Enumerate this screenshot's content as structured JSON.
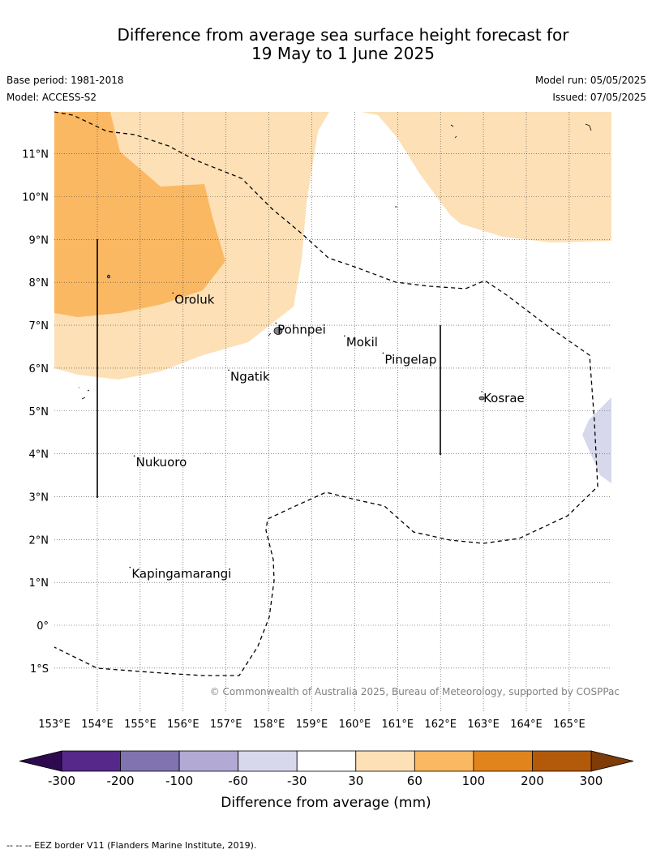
{
  "title_line1": "Difference from average sea surface height forecast for",
  "title_line2": "19 May to 1 June 2025",
  "base_period": "Base period: 1981-2018",
  "model": "Model: ACCESS-S2",
  "model_run": "Model run: 05/05/2025",
  "issued": "Issued: 07/05/2025",
  "copyright": "© Commonwealth of Australia 2025, Bureau of Meteorology, supported by COSPPac",
  "lat_labels": [
    "11°N",
    "10°N",
    "9°N",
    "8°N",
    "7°N",
    "6°N",
    "5°N",
    "4°N",
    "3°N",
    "2°N",
    "1°N",
    "0°",
    "1°S"
  ],
  "lon_labels": [
    "153°E",
    "154°E",
    "155°E",
    "156°E",
    "157°E",
    "158°E",
    "159°E",
    "160°E",
    "161°E",
    "162°E",
    "163°E",
    "164°E",
    "165°E"
  ],
  "places": [
    {
      "name": "Oroluk",
      "lon": 155.8,
      "lat": 7.6
    },
    {
      "name": "Pohnpei",
      "lon": 158.2,
      "lat": 6.9
    },
    {
      "name": "Mokil",
      "lon": 159.8,
      "lat": 6.6
    },
    {
      "name": "Pingelap",
      "lon": 160.7,
      "lat": 6.2
    },
    {
      "name": "Ngatik",
      "lon": 157.1,
      "lat": 5.8
    },
    {
      "name": "Kosrae",
      "lon": 163.0,
      "lat": 5.3
    },
    {
      "name": "Nukuoro",
      "lon": 154.9,
      "lat": 3.8
    },
    {
      "name": "Kapingamarangi",
      "lon": 154.8,
      "lat": 1.2
    }
  ],
  "colorbar": {
    "title": "Difference from average (mm)",
    "tick_labels": [
      "-300",
      "-200",
      "-100",
      "-60",
      "-30",
      "30",
      "60",
      "100",
      "200",
      "300"
    ],
    "colors": [
      "#55288a",
      "#8073b0",
      "#b2a9d4",
      "#d8d8ec",
      "#ffffff",
      "#fde0b6",
      "#fbb862",
      "#e1841b",
      "#b25a09"
    ],
    "under_color": "#2d0a4e",
    "over_color": "#7f3b08"
  },
  "legend_text": "-- -- -- EEZ border V11 (Flanders Marine Institute, 2019)."
}
